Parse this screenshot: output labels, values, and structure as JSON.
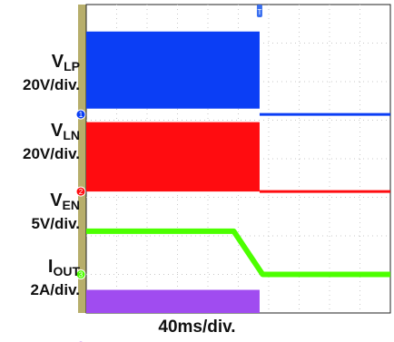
{
  "chart_data": {
    "type": "line",
    "timebase": "40ms/div.",
    "divisions_x": 10,
    "divisions_y": 8,
    "trigger_marker": "T",
    "channels": [
      {
        "id": "1",
        "name": "V",
        "subscript": "LP",
        "scale": "20V/div.",
        "color": "#0b3ef5",
        "high_band_div": [
          0.7,
          2.7
        ],
        "low_level_div": 2.85,
        "step_time_div": 5.7
      },
      {
        "id": "2",
        "name": "V",
        "subscript": "LN",
        "scale": "20V/div.",
        "color": "#ff0c10",
        "high_band_div": [
          3.05,
          4.85
        ],
        "low_level_div": 4.85,
        "step_time_div": 5.7
      },
      {
        "id": "3",
        "name": "V",
        "subscript": "EN",
        "scale": "5V/div.",
        "color": "#4cff00",
        "high_level_div": 5.88,
        "low_level_div": 7.0,
        "fall_start_div": 4.85,
        "fall_end_div": 5.8
      },
      {
        "id": "4",
        "name": "I",
        "subscript": "OUT",
        "scale": "2A/div.",
        "color": "#a04cf0",
        "high_band_div": [
          7.4,
          8.0
        ],
        "low_level_div": 8.85,
        "step_time_div": 5.7
      }
    ]
  },
  "labels": {
    "ch1_name": "V",
    "ch1_sub": "LP",
    "ch1_scale": "20V/div.",
    "ch2_name": "V",
    "ch2_sub": "LN",
    "ch2_scale": "20V/div.",
    "ch3_name": "V",
    "ch3_sub": "EN",
    "ch3_scale": "5V/div.",
    "ch4_name": "I",
    "ch4_sub": "OUT",
    "ch4_scale": "2A/div.",
    "timebase": "40ms/div."
  },
  "colors": {
    "bezel": "#b7ae6b",
    "grid": "#c8c8c8",
    "border": "#222222"
  }
}
